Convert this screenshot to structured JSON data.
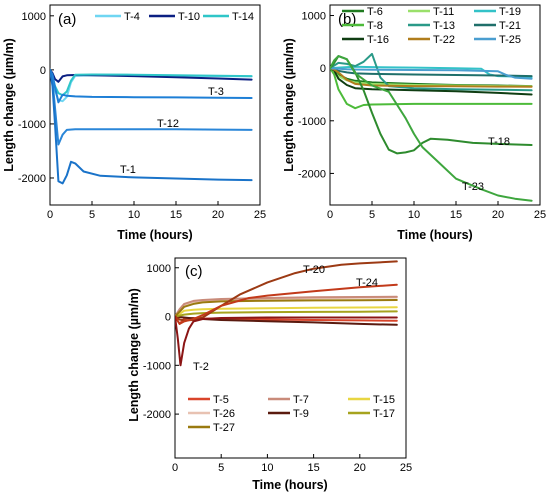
{
  "chart_data": [
    {
      "type": "line",
      "panel": "(a)",
      "xlabel": "Time (hours)",
      "ylabel": "Length change (µm/m)",
      "xlim": [
        0,
        25
      ],
      "ylim": [
        -2500,
        1200
      ],
      "xticks": [
        0,
        5,
        10,
        15,
        20,
        25
      ],
      "yticks": [
        -2000,
        -1000,
        0,
        1000
      ],
      "legend_columns": 3,
      "series": [
        {
          "name": "T-4",
          "color": "#6fd6f2",
          "x": [
            0,
            0.3,
            0.6,
            1,
            1.5,
            2,
            2.5,
            3,
            5,
            10,
            15,
            20,
            24
          ],
          "y": [
            0,
            -150,
            -380,
            -560,
            -580,
            -500,
            -230,
            -110,
            -100,
            -105,
            -110,
            -115,
            -120
          ]
        },
        {
          "name": "T-10",
          "color": "#0b1f82",
          "x": [
            0,
            0.3,
            0.6,
            1,
            1.5,
            2,
            3,
            5,
            10,
            15,
            20,
            24
          ],
          "y": [
            0,
            -60,
            -170,
            -220,
            -120,
            -100,
            -95,
            -100,
            -115,
            -135,
            -160,
            -180
          ]
        },
        {
          "name": "T-14",
          "color": "#2fc6c8",
          "x": [
            0,
            0.3,
            0.6,
            1,
            1.5,
            2,
            2.5,
            3,
            5,
            10,
            15,
            20,
            24
          ],
          "y": [
            0,
            -120,
            -300,
            -430,
            -470,
            -400,
            -200,
            -90,
            -85,
            -90,
            -100,
            -110,
            -115
          ]
        },
        {
          "name": "T-3",
          "color": "#1e7fd6",
          "x": [
            0,
            0.3,
            0.6,
            1,
            1.5,
            2,
            3,
            5,
            10,
            15,
            20,
            24
          ],
          "y": [
            0,
            -90,
            -320,
            -600,
            -460,
            -480,
            -490,
            -500,
            -505,
            -510,
            -515,
            -520
          ]
        },
        {
          "name": "T-12",
          "color": "#2a86d8",
          "x": [
            0,
            0.3,
            0.6,
            1,
            1.5,
            2,
            3,
            5,
            10,
            15,
            20,
            24
          ],
          "y": [
            0,
            -200,
            -700,
            -1380,
            -1200,
            -1110,
            -1100,
            -1100,
            -1100,
            -1100,
            -1105,
            -1110
          ]
        },
        {
          "name": "T-1",
          "color": "#1a73c9",
          "x": [
            0,
            0.3,
            0.6,
            1,
            1.5,
            2,
            2.5,
            3,
            4,
            6,
            10,
            15,
            20,
            24
          ],
          "y": [
            0,
            -300,
            -1000,
            -2060,
            -2100,
            -1950,
            -1700,
            -1730,
            -1880,
            -1960,
            -1990,
            -2010,
            -2030,
            -2040
          ]
        }
      ],
      "annotations": [
        "T-3",
        "T-12",
        "T-1"
      ]
    },
    {
      "type": "line",
      "panel": "(b)",
      "xlabel": "Time (hours)",
      "ylabel": "Length change (µm/m)",
      "xlim": [
        0,
        25
      ],
      "ylim": [
        -2600,
        1200
      ],
      "xticks": [
        0,
        5,
        10,
        15,
        20,
        25
      ],
      "yticks": [
        -2000,
        -1000,
        0,
        1000
      ],
      "legend_columns": 3,
      "series": [
        {
          "name": "T-6",
          "color": "#1f7a1f",
          "x": [
            0,
            0.5,
            1,
            2,
            3,
            5,
            10,
            15,
            20,
            24
          ],
          "y": [
            0,
            -50,
            -120,
            -200,
            -240,
            -270,
            -300,
            -320,
            -330,
            -340
          ]
        },
        {
          "name": "T-11",
          "color": "#9ae06a",
          "x": [
            0,
            0.5,
            1,
            2,
            3,
            5,
            10,
            15,
            20,
            24
          ],
          "y": [
            0,
            -60,
            -150,
            -230,
            -270,
            -300,
            -320,
            -330,
            -340,
            -345
          ]
        },
        {
          "name": "T-19",
          "color": "#33c2c8",
          "x": [
            0,
            1,
            2,
            3,
            5,
            10,
            15,
            18,
            19,
            20,
            24
          ],
          "y": [
            0,
            10,
            20,
            25,
            20,
            10,
            0,
            -10,
            -120,
            -150,
            -170
          ]
        },
        {
          "name": "T-8",
          "color": "#4dbb3a",
          "x": [
            0,
            0.5,
            1,
            2,
            3,
            4,
            5,
            10,
            15,
            20,
            24
          ],
          "y": [
            0,
            -120,
            -400,
            -680,
            -760,
            -700,
            -690,
            -680,
            -680,
            -680,
            -680
          ]
        },
        {
          "name": "T-13",
          "color": "#2a9a88",
          "x": [
            0,
            1,
            2,
            3,
            4,
            5,
            6,
            7,
            10,
            15,
            20,
            24
          ],
          "y": [
            0,
            100,
            80,
            40,
            120,
            270,
            -180,
            -340,
            -380,
            -400,
            -410,
            -420
          ]
        },
        {
          "name": "T-21",
          "color": "#1f6f6a",
          "x": [
            0,
            0.5,
            1,
            2,
            3,
            5,
            10,
            15,
            20,
            24
          ],
          "y": [
            0,
            -20,
            -50,
            -80,
            -100,
            -110,
            -120,
            -130,
            -140,
            -150
          ]
        },
        {
          "name": "T-16",
          "color": "#0f3d12",
          "x": [
            0,
            0.5,
            1,
            2,
            3,
            5,
            10,
            15,
            20,
            24
          ],
          "y": [
            0,
            -40,
            -200,
            -320,
            -380,
            -400,
            -420,
            -440,
            -470,
            -500
          ]
        },
        {
          "name": "T-22",
          "color": "#b07d1c",
          "x": [
            0,
            0.5,
            1,
            2,
            3,
            5,
            10,
            15,
            20,
            24
          ],
          "y": [
            0,
            -30,
            -80,
            -220,
            -300,
            -330,
            -340,
            -345,
            -350,
            -355
          ]
        },
        {
          "name": "T-25",
          "color": "#4a9ed0",
          "x": [
            0,
            1,
            2,
            3,
            5,
            10,
            15,
            20,
            21,
            22,
            24
          ],
          "y": [
            0,
            -10,
            -20,
            -25,
            -30,
            -35,
            -40,
            -60,
            -130,
            -180,
            -200
          ]
        },
        {
          "name": "T-18",
          "color": "#2e8b2e",
          "x": [
            0,
            0.5,
            1,
            2,
            3,
            4,
            5,
            6,
            7,
            8,
            9,
            10,
            11,
            12,
            14,
            17,
            20,
            24
          ],
          "y": [
            0,
            100,
            230,
            170,
            -80,
            -420,
            -850,
            -1250,
            -1550,
            -1620,
            -1600,
            -1560,
            -1420,
            -1340,
            -1360,
            -1420,
            -1440,
            -1460
          ]
        },
        {
          "name": "T-23",
          "color": "#3ea63e",
          "x": [
            0,
            0.5,
            1,
            2,
            3,
            5,
            7,
            8,
            9,
            10,
            11,
            13,
            15,
            18,
            20,
            22,
            24
          ],
          "y": [
            0,
            150,
            230,
            170,
            -100,
            -330,
            -450,
            -700,
            -950,
            -1250,
            -1500,
            -1800,
            -2100,
            -2300,
            -2420,
            -2480,
            -2520
          ]
        }
      ],
      "annotations": [
        "T-18",
        "T-23"
      ]
    },
    {
      "type": "line",
      "panel": "(c)",
      "xlabel": "Time (hours)",
      "ylabel": "Length change (µm/m)",
      "xlim": [
        0,
        25
      ],
      "ylim": [
        -2900,
        1200
      ],
      "xticks": [
        0,
        5,
        10,
        15,
        20,
        25
      ],
      "yticks": [
        -2000,
        -1000,
        0,
        1000
      ],
      "legend_columns": 3,
      "series": [
        {
          "name": "T-5",
          "color": "#d9442a",
          "x": [
            0,
            0.5,
            1,
            2,
            3,
            5,
            10,
            15,
            20,
            24
          ],
          "y": [
            0,
            -150,
            -40,
            -30,
            -40,
            -50,
            -60,
            -70,
            -80,
            -85
          ]
        },
        {
          "name": "T-15",
          "color": "#e8d642",
          "x": [
            0,
            0.5,
            1,
            2,
            3,
            5,
            10,
            15,
            20,
            24
          ],
          "y": [
            0,
            50,
            120,
            140,
            150,
            160,
            170,
            180,
            185,
            190
          ]
        },
        {
          "name": "T-26",
          "color": "#e8c2b2",
          "x": [
            0,
            0.5,
            1,
            2,
            3,
            5,
            10,
            15,
            20,
            24
          ],
          "y": [
            0,
            120,
            240,
            300,
            320,
            340,
            360,
            375,
            385,
            390
          ]
        },
        {
          "name": "T-7",
          "color": "#c98b7a",
          "x": [
            0,
            0.5,
            1,
            2,
            3,
            5,
            10,
            15,
            20,
            24
          ],
          "y": [
            0,
            150,
            260,
            320,
            340,
            360,
            380,
            395,
            400,
            405
          ]
        },
        {
          "name": "T-9",
          "color": "#5a1a0f",
          "x": [
            0,
            0.5,
            1,
            2,
            3,
            5,
            10,
            15,
            20,
            24
          ],
          "y": [
            0,
            -10,
            -20,
            -40,
            -50,
            -70,
            -95,
            -120,
            -150,
            -170
          ]
        },
        {
          "name": "T-17",
          "color": "#a6a31e",
          "x": [
            0,
            0.5,
            1,
            2,
            3,
            5,
            10,
            15,
            20,
            24
          ],
          "y": [
            0,
            20,
            40,
            60,
            70,
            80,
            90,
            95,
            100,
            105
          ]
        },
        {
          "name": "T-27",
          "color": "#9a7a10",
          "x": [
            0,
            0.5,
            1,
            2,
            3,
            5,
            10,
            15,
            20,
            24
          ],
          "y": [
            0,
            100,
            200,
            260,
            290,
            310,
            325,
            330,
            335,
            340
          ]
        },
        {
          "name": "T-20",
          "color": "#9c3a14",
          "x": [
            0,
            0.5,
            1,
            2,
            3,
            5,
            7,
            10,
            13,
            15,
            18,
            20,
            24
          ],
          "y": [
            0,
            -60,
            -80,
            -70,
            -20,
            220,
            450,
            700,
            890,
            980,
            1060,
            1090,
            1130
          ]
        },
        {
          "name": "T-24",
          "color": "#c23a1a",
          "x": [
            0,
            0.5,
            1,
            2,
            3,
            5,
            8,
            10,
            15,
            20,
            24
          ],
          "y": [
            0,
            -150,
            -100,
            -50,
            30,
            220,
            380,
            430,
            520,
            600,
            650
          ]
        },
        {
          "name": "T-2",
          "color": "#8b1515",
          "x": [
            0,
            0.3,
            0.6,
            1,
            1.5,
            2,
            3,
            5,
            10,
            15,
            20,
            24
          ],
          "y": [
            0,
            -450,
            -1000,
            -540,
            -250,
            -100,
            -50,
            -30,
            -20,
            -20,
            -20,
            -20
          ]
        }
      ],
      "annotations": [
        "T-20",
        "T-24",
        "T-2"
      ]
    }
  ]
}
